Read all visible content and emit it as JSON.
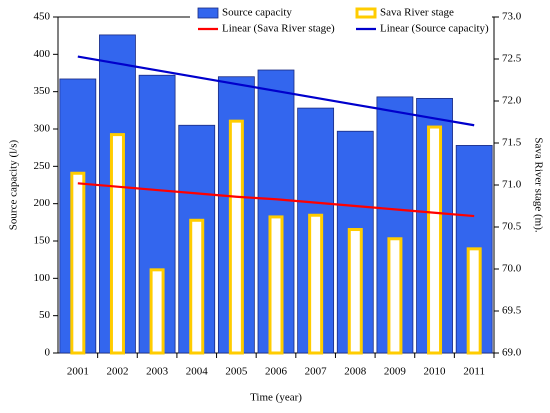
{
  "chart_data": {
    "type": "bar",
    "x_label": "Time (year)",
    "y_label": "Source capacity (l/s)",
    "y2_label": "Sava River stage (m).",
    "categories": [
      "2001",
      "2002",
      "2003",
      "2004",
      "2005",
      "2006",
      "2007",
      "2008",
      "2009",
      "2010",
      "2011"
    ],
    "series": [
      {
        "name": "Source capacity",
        "type": "bar",
        "axis": "y",
        "color": "#3366ee",
        "values": [
          367,
          426,
          372,
          305,
          370,
          379,
          328,
          297,
          343,
          341,
          278
        ]
      },
      {
        "name": "Sava River stage",
        "type": "bar",
        "axis": "y2",
        "color": "#ffcc00",
        "values": [
          71.14,
          71.6,
          69.99,
          70.58,
          71.76,
          70.62,
          70.64,
          70.47,
          70.36,
          71.69,
          70.24
        ]
      },
      {
        "name": "Linear (Sava River stage)",
        "type": "line",
        "axis": "y2",
        "color": "#ff0000",
        "values": [
          71.02,
          70.98,
          70.94,
          70.9,
          70.86,
          70.83,
          70.79,
          70.75,
          70.71,
          70.67,
          70.63
        ]
      },
      {
        "name": "Linear (Source capacity)",
        "type": "line",
        "axis": "y",
        "color": "#0000cc",
        "values": [
          397,
          387.8,
          378.6,
          369.4,
          360.2,
          351,
          341.8,
          332.6,
          323.4,
          314.2,
          305
        ]
      }
    ],
    "ylim": [
      0,
      450
    ],
    "yticks": [
      0,
      50,
      100,
      150,
      200,
      250,
      300,
      350,
      400,
      450
    ],
    "y2lim": [
      69,
      73
    ],
    "y2ticks": [
      {
        "value": 69,
        "label": "69.0"
      },
      69.5,
      {
        "value": 70,
        "label": "70.0"
      },
      70.5,
      {
        "value": 71,
        "label": "71.0"
      },
      71.5,
      {
        "value": 72,
        "label": "72.0"
      },
      72.5,
      {
        "value": 73,
        "label": "73.0"
      }
    ],
    "grid": false
  }
}
